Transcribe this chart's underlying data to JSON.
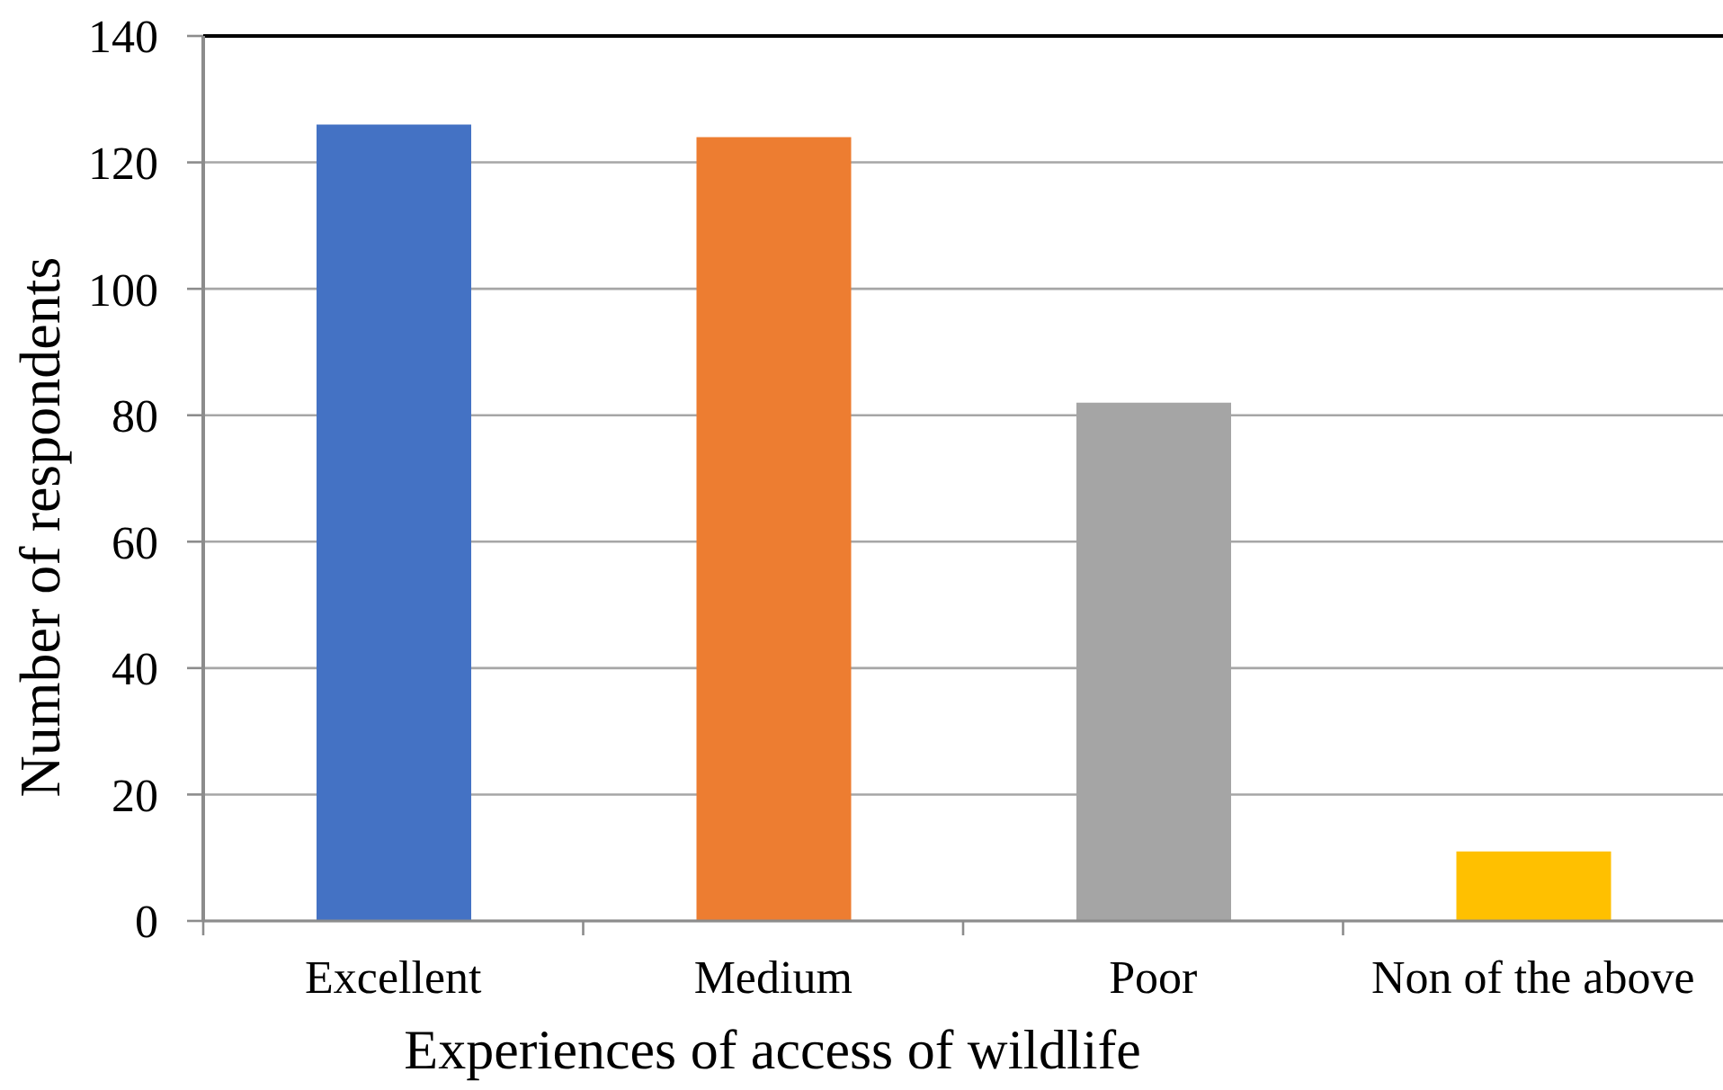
{
  "chart_data": {
    "type": "bar",
    "xlabel": "Experiences of access of wildlife",
    "ylabel": "Number of respondents",
    "categories": [
      "Excellent",
      "Medium",
      "Poor",
      "Non of the above"
    ],
    "values": [
      126,
      124,
      82,
      11
    ],
    "colors": [
      "#4472c4",
      "#ed7d31",
      "#a5a5a5",
      "#ffc000"
    ],
    "ylim": [
      0,
      140
    ],
    "yticks": [
      0,
      20,
      40,
      60,
      80,
      100,
      120,
      140
    ],
    "grid": "y"
  }
}
